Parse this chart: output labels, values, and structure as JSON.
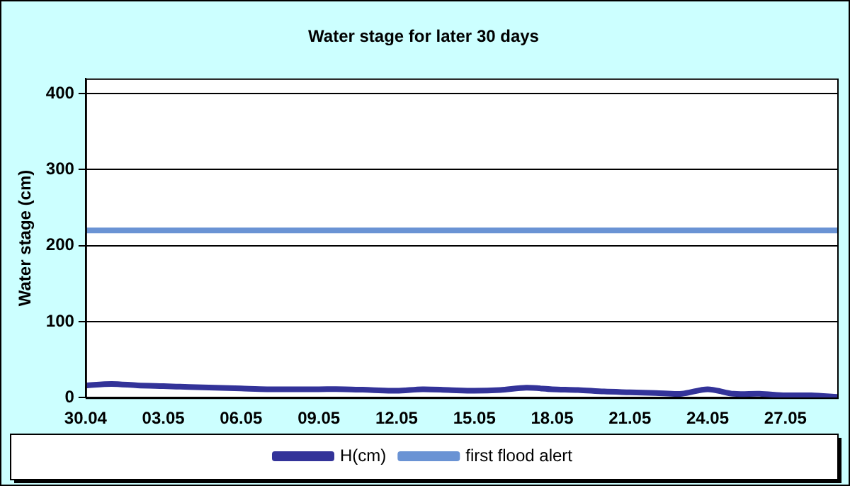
{
  "chart_data": {
    "type": "line",
    "title": "Water stage for later 30 days",
    "ylabel": "Water stage (cm)",
    "categories": [
      "30.04",
      null,
      null,
      "03.05",
      null,
      null,
      "06.05",
      null,
      null,
      "09.05",
      null,
      null,
      "12.05",
      null,
      null,
      "15.05",
      null,
      null,
      "18.05",
      null,
      null,
      "21.05",
      null,
      null,
      "24.05",
      null,
      null,
      "27.05",
      null,
      null
    ],
    "series": [
      {
        "name": "H(cm)",
        "color": "#333399",
        "values": [
          16,
          18,
          16,
          15,
          14,
          13,
          12,
          11,
          11,
          11,
          11,
          10,
          9,
          11,
          10,
          9,
          10,
          13,
          11,
          10,
          8,
          7,
          6,
          5,
          11,
          5,
          5,
          3,
          3,
          1
        ]
      },
      {
        "name": "first flood alert",
        "color": "#6a93d4",
        "values": [
          220,
          220,
          220,
          220,
          220,
          220,
          220,
          220,
          220,
          220,
          220,
          220,
          220,
          220,
          220,
          220,
          220,
          220,
          220,
          220,
          220,
          220,
          220,
          220,
          220,
          220,
          220,
          220,
          220,
          220
        ]
      }
    ],
    "ylim": [
      0,
      420
    ],
    "yticks": [
      0,
      100,
      200,
      300,
      400
    ],
    "grid": "y",
    "legend": "bottom",
    "marker": "none",
    "line_style": "solid"
  }
}
